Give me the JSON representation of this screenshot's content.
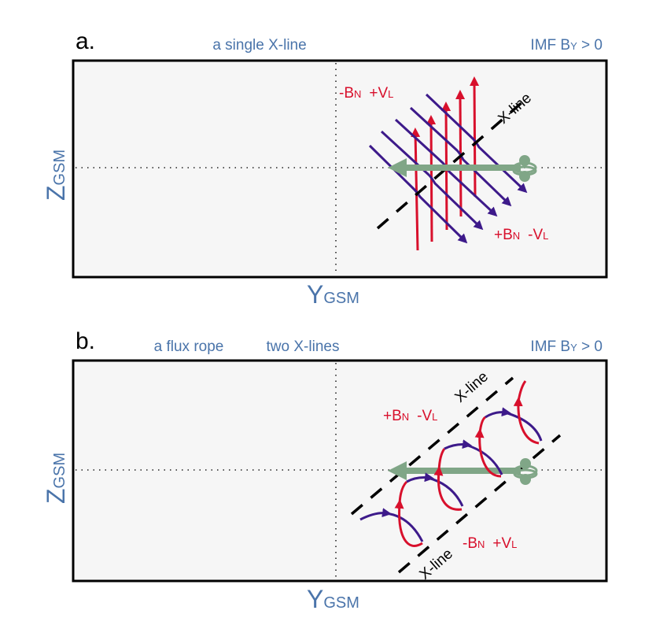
{
  "colors": {
    "label_blue": "#4a74aa",
    "field_red": "#d8102c",
    "field_purple": "#3d1a8a",
    "spacecraft_green": "#80a687"
  },
  "panel_a": {
    "letter": "a.",
    "title": "a single X-line",
    "imf": {
      "main": "IMF B",
      "sub": "Y",
      "rest": " > 0"
    },
    "zlabel": {
      "main": "Z",
      "sub": "GSM"
    },
    "ylabel": {
      "main": "Y",
      "sub": "GSM"
    },
    "upper_label": {
      "b": "-B",
      "bsub": "N",
      "v": "+V",
      "vsub": "L"
    },
    "lower_label": {
      "b": "+B",
      "bsub": "N",
      "v": "-V",
      "vsub": "L"
    },
    "xline_label": "X-line"
  },
  "panel_b": {
    "letter": "b.",
    "title1": "a flux rope",
    "title2": "two X-lines",
    "imf": {
      "main": "IMF B",
      "sub": "Y",
      "rest": " > 0"
    },
    "zlabel": {
      "main": "Z",
      "sub": "GSM"
    },
    "ylabel": {
      "main": "Y",
      "sub": "GSM"
    },
    "upper_label": {
      "b": "+B",
      "bsub": "N",
      "v": "-V",
      "vsub": "L"
    },
    "lower_label": {
      "b": "-B",
      "bsub": "N",
      "v": "+V",
      "vsub": "L"
    },
    "xline_upper_label": "X-line",
    "xline_lower_label": "X-line"
  }
}
